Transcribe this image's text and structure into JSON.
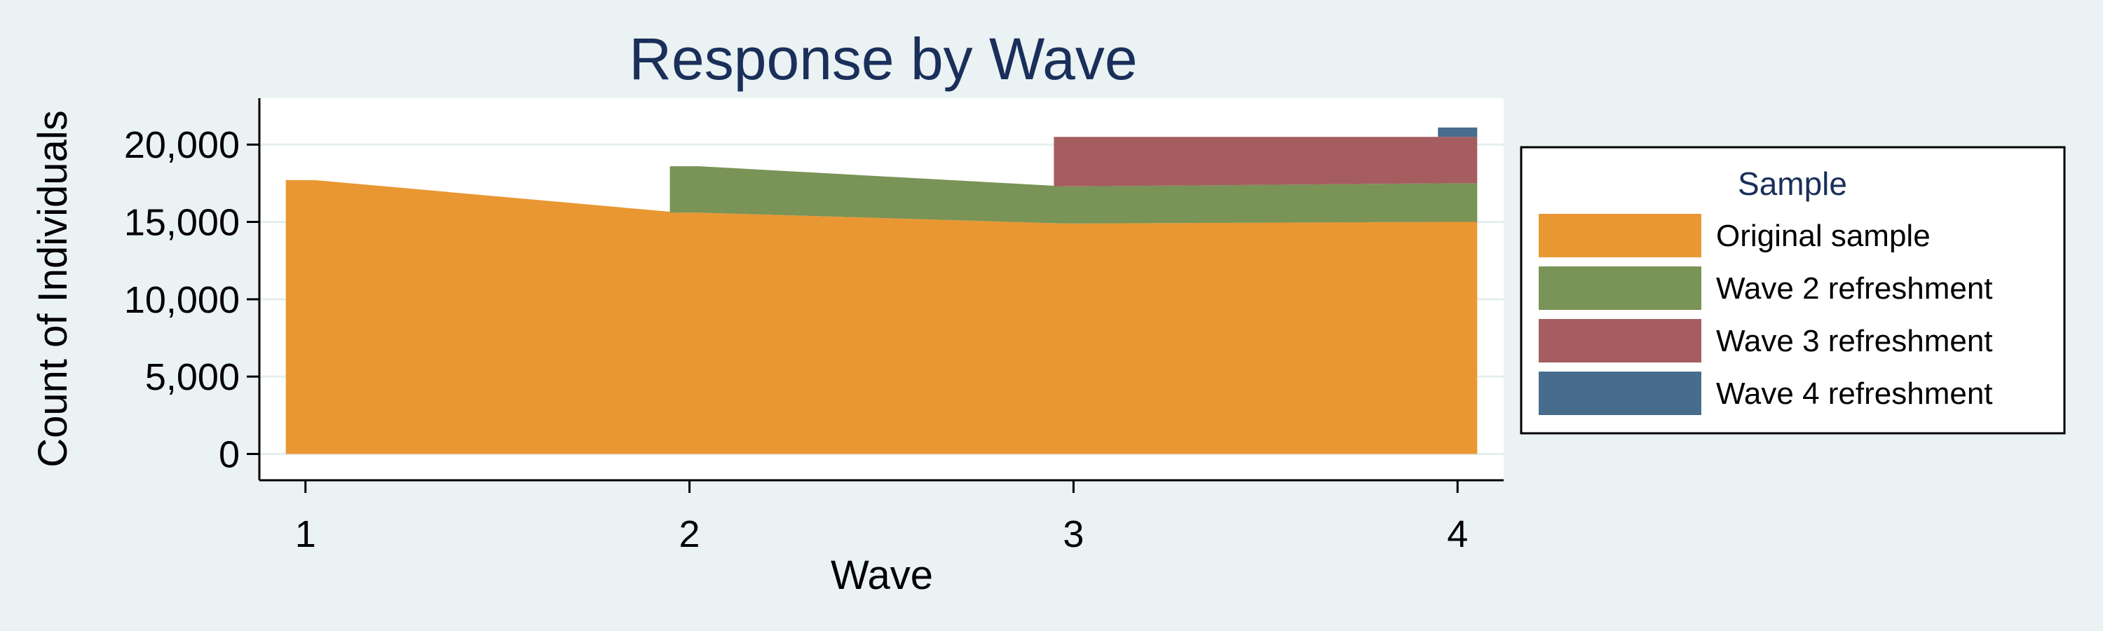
{
  "chart_data": {
    "type": "area",
    "title": "Response by Wave",
    "xlabel": "Wave",
    "ylabel": "Count of Individuals",
    "x": [
      1,
      2,
      3,
      4
    ],
    "xticks": [
      "1",
      "2",
      "3",
      "4"
    ],
    "yticks": [
      0,
      5000,
      10000,
      15000,
      20000
    ],
    "ytick_labels": [
      "0",
      "5,000",
      "10,000",
      "15,000",
      "20,000"
    ],
    "ylim": [
      -1700,
      23000
    ],
    "xlim": [
      0.88,
      4.12
    ],
    "stacked": true,
    "grid": true,
    "legend_placement": "right",
    "legend_title": "Sample",
    "series": [
      {
        "name": "Original sample",
        "color": "#e99733",
        "values": [
          17700,
          15600,
          14900,
          15000
        ]
      },
      {
        "name": "Wave 2 refreshment",
        "color": "#7a9356",
        "values": [
          null,
          3000,
          2400,
          2500
        ]
      },
      {
        "name": "Wave 3 refreshment",
        "color": "#a55d60",
        "values": [
          null,
          null,
          3200,
          3000
        ]
      },
      {
        "name": "Wave 4 refreshment",
        "color": "#476c8c",
        "values": [
          null,
          null,
          null,
          600
        ]
      }
    ]
  }
}
